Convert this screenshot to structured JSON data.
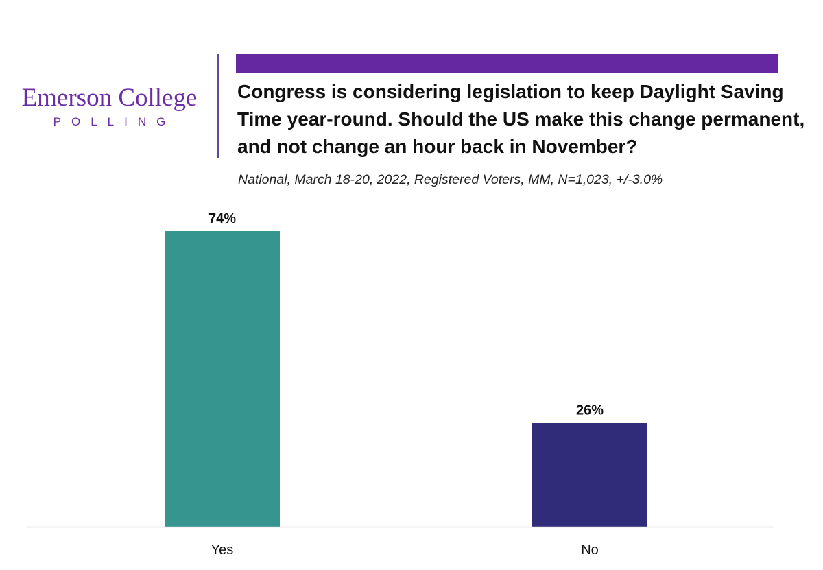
{
  "logo": {
    "name": "Emerson College",
    "subname": "POLLING"
  },
  "title": "Congress is considering legislation to keep Daylight Saving Time year-round. Should the US make this change permanent, and not change an hour back in November?",
  "subtitle": "National, March 18-20, 2022, Registered Voters, MM, N=1,023, +/-3.0%",
  "colors": {
    "accent": "#6628a0",
    "logo_text": "#6b2fa3",
    "yes_bar": "#379590",
    "no_bar": "#302c7a"
  },
  "chart_data": {
    "type": "bar",
    "categories": [
      "Yes",
      "No"
    ],
    "values": [
      74,
      26
    ],
    "data_labels": [
      "74%",
      "26%"
    ],
    "colors": [
      "#379590",
      "#302c7a"
    ],
    "ylim": [
      0,
      75
    ],
    "grid": false,
    "legend": "none",
    "xlabel": "",
    "ylabel": ""
  }
}
